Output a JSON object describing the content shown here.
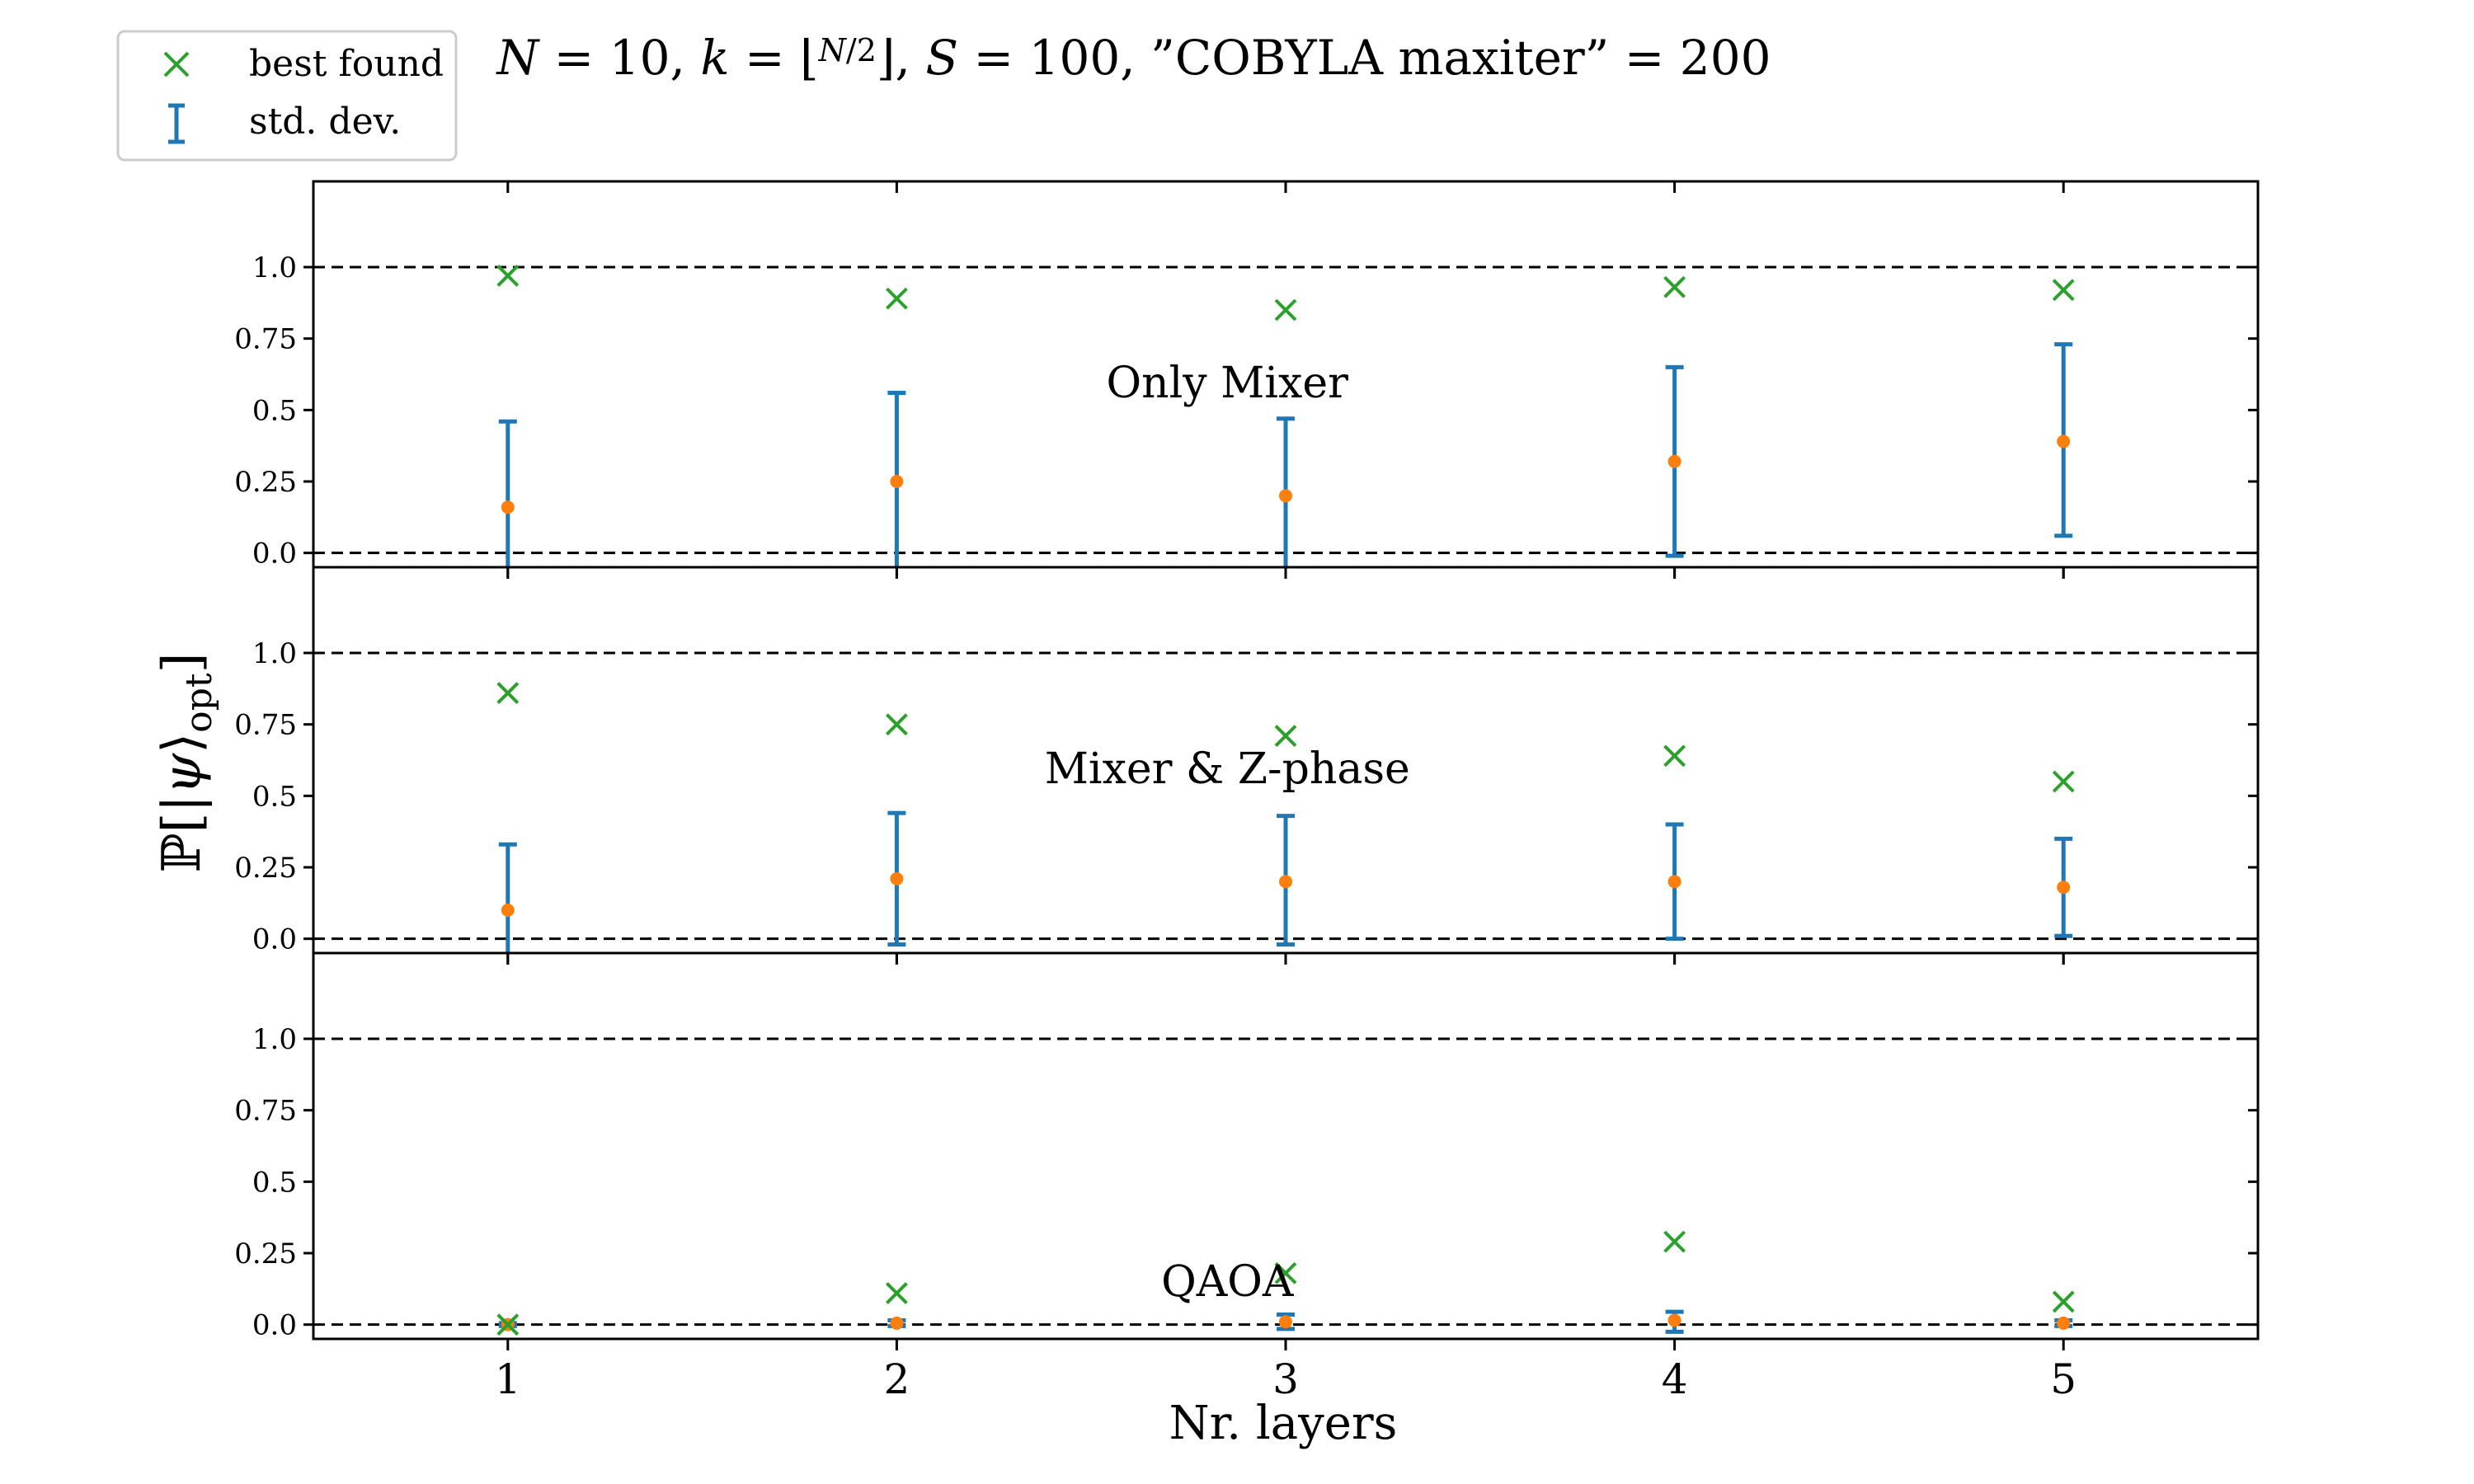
{
  "title": "N = 10,    k = ⌊N/2⌋,    S = 100,    ”COBYLA maxiter” = 200",
  "legend": {
    "placement": "top-left",
    "entries": [
      {
        "label": "best found",
        "marker": "x",
        "color": "#2ca02c"
      },
      {
        "label": "std. dev.",
        "marker": "errorbar",
        "color": "#1f77b4"
      }
    ]
  },
  "colors": {
    "best": "#2ca02c",
    "errorbar": "#1f77b4",
    "mean": "#ff7f0e",
    "reference_line": "#000000"
  },
  "chart_data": {
    "type": "scatter",
    "xlabel": "Nr. layers",
    "ylabel": "ℙ[|ψ⟩opt]",
    "x": [
      1,
      2,
      3,
      4,
      5
    ],
    "x_ticks": [
      "1",
      "2",
      "3",
      "4",
      "5"
    ],
    "xlim": [
      0.5,
      5.5
    ],
    "ylim": [
      -0.05,
      1.3
    ],
    "y_ticks": [
      "0.0",
      "0.25",
      "0.5",
      "0.75",
      "1.0"
    ],
    "reference_lines": [
      0.0,
      1.0
    ],
    "grid": false,
    "panels": [
      {
        "label": "Only Mixer",
        "best": [
          0.97,
          0.89,
          0.85,
          0.93,
          0.92
        ],
        "mean": [
          0.16,
          0.25,
          0.2,
          0.32,
          0.39
        ],
        "err_low": [
          -0.16,
          -0.06,
          -0.07,
          -0.01,
          0.06
        ],
        "err_high": [
          0.46,
          0.56,
          0.47,
          0.65,
          0.73
        ]
      },
      {
        "label": "Mixer & Z-phase",
        "best": [
          0.86,
          0.75,
          0.71,
          0.64,
          0.55
        ],
        "mean": [
          0.1,
          0.21,
          0.2,
          0.2,
          0.18
        ],
        "err_low": [
          -0.13,
          -0.02,
          -0.02,
          0.0,
          0.01
        ],
        "err_high": [
          0.33,
          0.44,
          0.43,
          0.4,
          0.35
        ]
      },
      {
        "label": "QAOA",
        "best": [
          0.0,
          0.11,
          0.18,
          0.29,
          0.08
        ],
        "mean": [
          0.0,
          0.005,
          0.01,
          0.015,
          0.005
        ],
        "err_low": [
          -0.005,
          -0.005,
          -0.015,
          -0.025,
          -0.005
        ],
        "err_high": [
          0.005,
          0.015,
          0.035,
          0.045,
          0.015
        ]
      }
    ]
  }
}
